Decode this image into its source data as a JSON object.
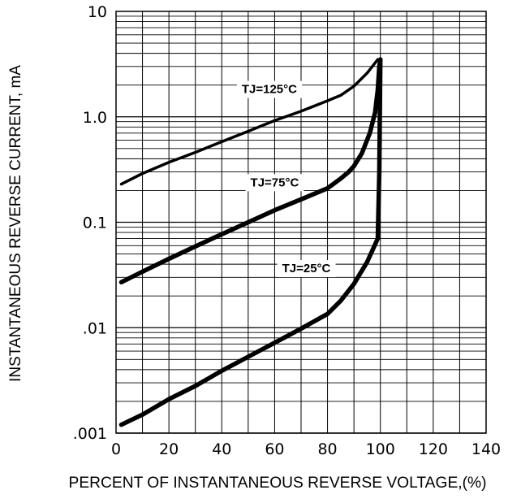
{
  "chart_data": {
    "type": "line",
    "title": "",
    "xlabel": "PERCENT OF INSTANTANEOUS REVERSE VOLTAGE,(%)",
    "ylabel": "INSTANTANEOUS REVERSE CURRENT, mA",
    "xlim": [
      0,
      140
    ],
    "ylim": [
      0.001,
      10
    ],
    "yscale": "log",
    "grid": true,
    "x_ticks": [
      0,
      20,
      40,
      60,
      80,
      100,
      120,
      140
    ],
    "x_tick_labels": [
      "0",
      "20",
      "40",
      "60",
      "80",
      "100",
      "120",
      "140"
    ],
    "y_ticks": [
      0.001,
      0.01,
      0.1,
      1,
      10
    ],
    "y_tick_labels": [
      ".001",
      ".01",
      "0.1",
      "1.0",
      "10"
    ],
    "colors": {
      "line": "#000000",
      "grid": "#000000",
      "background": "#ffffff"
    },
    "series": [
      {
        "name": "TJ=125°C",
        "x": [
          2,
          10,
          20,
          30,
          40,
          50,
          60,
          70,
          80,
          85,
          90,
          95,
          99
        ],
        "values": [
          0.23,
          0.29,
          0.37,
          0.46,
          0.58,
          0.73,
          0.92,
          1.13,
          1.42,
          1.6,
          1.95,
          2.6,
          3.5
        ]
      },
      {
        "name": "TJ=75°C",
        "x": [
          2,
          10,
          20,
          30,
          40,
          50,
          60,
          70,
          80,
          85,
          88,
          90,
          93,
          96,
          98,
          99,
          99.6,
          100
        ],
        "values": [
          0.027,
          0.034,
          0.045,
          0.059,
          0.077,
          0.1,
          0.13,
          0.165,
          0.21,
          0.26,
          0.3,
          0.34,
          0.45,
          0.7,
          1.1,
          1.8,
          3,
          3.5
        ]
      },
      {
        "name": "TJ=25°C",
        "x": [
          2,
          10,
          20,
          30,
          40,
          50,
          60,
          70,
          80,
          85,
          90,
          95,
          99,
          99.6,
          100
        ],
        "values": [
          0.0012,
          0.0015,
          0.0021,
          0.0028,
          0.0039,
          0.0053,
          0.0072,
          0.0098,
          0.0135,
          0.018,
          0.026,
          0.042,
          0.07,
          0.3,
          3.5
        ]
      }
    ],
    "annotations": [
      {
        "text": "TJ=125°C",
        "x": 58,
        "y": 1.8
      },
      {
        "text": "TJ=75°C",
        "x": 60,
        "y": 0.235
      },
      {
        "text": "TJ=25°C",
        "x": 72,
        "y": 0.036
      }
    ]
  }
}
